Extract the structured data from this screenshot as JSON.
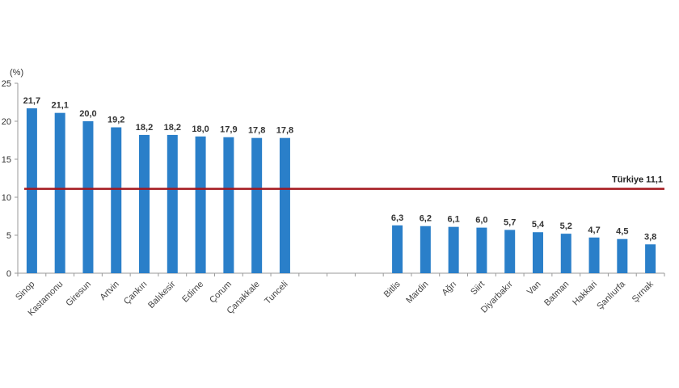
{
  "chart_data": {
    "type": "bar",
    "title": "",
    "ylabel": "(%)",
    "xlabel": "",
    "ylim": [
      0,
      25
    ],
    "yticks": [
      0,
      5,
      10,
      15,
      20,
      25
    ],
    "grid": false,
    "legend": "none",
    "bar_color": "#2a7fc9",
    "reference_line": {
      "label": "Türkiye",
      "value": 11.1,
      "value_label": "11,1",
      "color": "#a3161c"
    },
    "groups": [
      {
        "name": "highest",
        "categories": [
          "Sinop",
          "Kastamonu",
          "Giresun",
          "Artvin",
          "Çankırı",
          "Balıkesir",
          "Edirne",
          "Çorum",
          "Çanakkale",
          "Tunceli"
        ],
        "values": [
          21.7,
          21.1,
          20.0,
          19.2,
          18.2,
          18.2,
          18.0,
          17.9,
          17.8,
          17.8
        ],
        "labels": [
          "21,7",
          "21,1",
          "20,0",
          "19,2",
          "18,2",
          "18,2",
          "18,0",
          "17,9",
          "17,8",
          "17,8"
        ]
      },
      {
        "name": "lowest",
        "categories": [
          "Bitlis",
          "Mardin",
          "Ağrı",
          "Siirt",
          "Diyarbakır",
          "Van",
          "Batman",
          "Hakkari",
          "Şanlıurfa",
          "Şırnak"
        ],
        "values": [
          6.3,
          6.2,
          6.1,
          6.0,
          5.7,
          5.4,
          5.2,
          4.7,
          4.5,
          3.8
        ],
        "labels": [
          "6,3",
          "6,2",
          "6,1",
          "6,0",
          "5,7",
          "5,4",
          "5,2",
          "4,7",
          "4,5",
          "3,8"
        ]
      }
    ],
    "gap_slots_between_groups": 3
  }
}
